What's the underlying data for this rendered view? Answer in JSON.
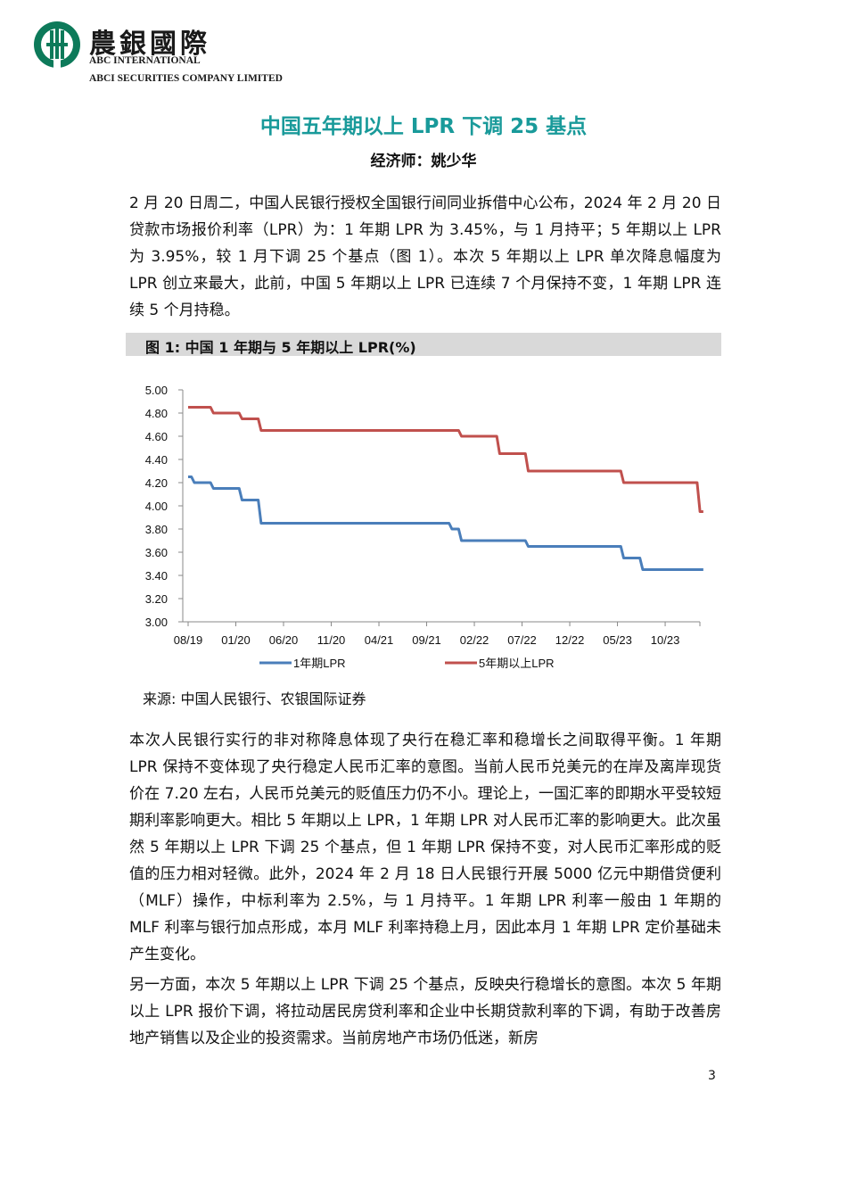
{
  "header": {
    "logo_cn": "農銀國際",
    "logo_en_line1": "ABC INTERNATIONAL",
    "logo_en_line2": "ABCI SECURITIES COMPANY LIMITED",
    "brand_color": "#0d7a5a"
  },
  "title": "中国五年期以上 LPR 下调 25 基点",
  "author": "经济师：姚少华",
  "paragraphs": [
    "2 月 20 日周二，中国人民银行授权全国银行间同业拆借中心公布，2024 年 2 月 20 日贷款市场报价利率（LPR）为：1 年期 LPR 为 3.45%，与 1 月持平；5 年期以上 LPR 为 3.95%，较 1 月下调 25 个基点（图 1）。本次 5 年期以上 LPR 单次降息幅度为 LPR 创立来最大，此前，中国 5 年期以上 LPR 已连续 7 个月保持不变，1 年期 LPR 连续 5 个月持稳。",
    "本次人民银行实行的非对称降息体现了央行在稳汇率和稳增长之间取得平衡。1 年期 LPR 保持不变体现了央行稳定人民币汇率的意图。当前人民币兑美元的在岸及离岸现货价在 7.20 左右，人民币兑美元的贬值压力仍不小。理论上，一国汇率的即期水平受较短期利率影响更大。相比 5 年期以上 LPR，1 年期 LPR 对人民币汇率的影响更大。此次虽然 5 年期以上 LPR 下调 25 个基点，但 1 年期 LPR 保持不变，对人民币汇率形成的贬值的压力相对轻微。此外，2024 年 2 月 18 日人民银行开展 5000 亿元中期借贷便利（MLF）操作，中标利率为 2.5%，与 1 月持平。1 年期 LPR 利率一般由 1 年期的 MLF 利率与银行加点形成，本月 MLF 利率持稳上月，因此本月 1 年期 LPR 定价基础未产生变化。",
    "另一方面，本次 5 年期以上 LPR 下调 25 个基点，反映央行稳增长的意图。本次 5 年期以上 LPR 报价下调，将拉动居民房贷利率和企业中长期贷款利率的下调，有助于改善房地产销售以及企业的投资需求。当前房地产市场仍低迷，新房"
  ],
  "figure_title": "图 1:  中国 1 年期与 5 年期以上 LPR(%)",
  "figure_source": "来源:  中国人民银行、农银国际证券",
  "page_number": "3",
  "chart_data": {
    "type": "line",
    "title": "",
    "xlabel": "",
    "ylabel": "",
    "ylim": [
      3.0,
      5.0
    ],
    "yticks": [
      "5.00",
      "4.80",
      "4.60",
      "4.40",
      "4.20",
      "4.00",
      "3.80",
      "3.60",
      "3.40",
      "3.20",
      "3.00"
    ],
    "xtick_labels": [
      "08/19",
      "01/20",
      "06/20",
      "11/20",
      "04/21",
      "09/21",
      "02/22",
      "07/22",
      "12/22",
      "05/23",
      "10/23"
    ],
    "legend_position": "bottom",
    "grid": false,
    "x": [
      "08/19",
      "09/19",
      "10/19",
      "11/19",
      "12/19",
      "01/20",
      "02/20",
      "03/20",
      "04/20",
      "05/20",
      "06/20",
      "07/20",
      "08/20",
      "09/20",
      "10/20",
      "11/20",
      "12/20",
      "01/21",
      "02/21",
      "03/21",
      "04/21",
      "05/21",
      "06/21",
      "07/21",
      "08/21",
      "09/21",
      "10/21",
      "11/21",
      "12/21",
      "01/22",
      "02/22",
      "03/22",
      "04/22",
      "05/22",
      "06/22",
      "07/22",
      "08/22",
      "09/22",
      "10/22",
      "11/22",
      "12/22",
      "01/23",
      "02/23",
      "03/23",
      "04/23",
      "05/23",
      "06/23",
      "07/23",
      "08/23",
      "09/23",
      "10/23",
      "11/23",
      "12/23",
      "01/24",
      "02/24"
    ],
    "series": [
      {
        "name": "1年期LPR",
        "color": "#4a7eba",
        "values": [
          4.25,
          4.2,
          4.2,
          4.15,
          4.15,
          4.15,
          4.05,
          4.05,
          3.85,
          3.85,
          3.85,
          3.85,
          3.85,
          3.85,
          3.85,
          3.85,
          3.85,
          3.85,
          3.85,
          3.85,
          3.85,
          3.85,
          3.85,
          3.85,
          3.85,
          3.85,
          3.85,
          3.85,
          3.8,
          3.7,
          3.7,
          3.7,
          3.7,
          3.7,
          3.7,
          3.7,
          3.65,
          3.65,
          3.65,
          3.65,
          3.65,
          3.65,
          3.65,
          3.65,
          3.65,
          3.65,
          3.55,
          3.55,
          3.45,
          3.45,
          3.45,
          3.45,
          3.45,
          3.45,
          3.45
        ]
      },
      {
        "name": "5年期以上LPR",
        "color": "#c0504d",
        "values": [
          4.85,
          4.85,
          4.85,
          4.8,
          4.8,
          4.8,
          4.75,
          4.75,
          4.65,
          4.65,
          4.65,
          4.65,
          4.65,
          4.65,
          4.65,
          4.65,
          4.65,
          4.65,
          4.65,
          4.65,
          4.65,
          4.65,
          4.65,
          4.65,
          4.65,
          4.65,
          4.65,
          4.65,
          4.65,
          4.6,
          4.6,
          4.6,
          4.6,
          4.45,
          4.45,
          4.45,
          4.3,
          4.3,
          4.3,
          4.3,
          4.3,
          4.3,
          4.3,
          4.3,
          4.3,
          4.3,
          4.2,
          4.2,
          4.2,
          4.2,
          4.2,
          4.2,
          4.2,
          4.2,
          3.95
        ]
      }
    ]
  }
}
